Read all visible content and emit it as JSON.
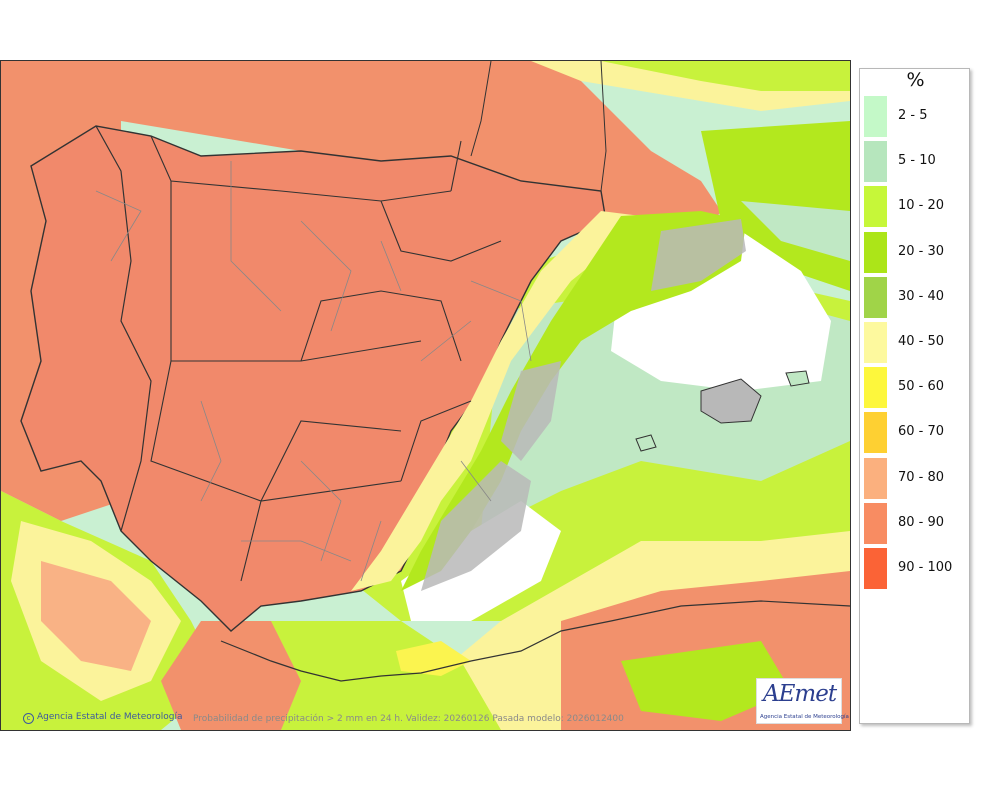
{
  "colors": {
    "sea": "#c9f0d2",
    "land_high": "#f1896b",
    "land_outline": "#333333",
    "province_border": "#888888",
    "band_80_90": "#f2916c",
    "band_70_80": "#f9b285",
    "band_60_70": "#fbd261",
    "band_50_60": "#fbf44f",
    "band_40_50": "#fbf39b",
    "band_20_30": "#b3e81e",
    "band_10_20": "#c8f23c",
    "band_5_10": "#c0e8c4",
    "band_2_5": "#d4f8d0",
    "band_low": "#ffffff",
    "relief_grey": "#b8b8b8"
  },
  "legend": {
    "title": "%",
    "items": [
      {
        "label": "2 - 5",
        "color": "#c4f9c8"
      },
      {
        "label": "5 - 10",
        "color": "#b6e6bd"
      },
      {
        "label": "10 - 20",
        "color": "#c6f739"
      },
      {
        "label": "20 - 30",
        "color": "#ace518"
      },
      {
        "label": "30 - 40",
        "color": "#a0d448"
      },
      {
        "label": "40 - 50",
        "color": "#fdf99e"
      },
      {
        "label": "50 - 60",
        "color": "#fdf73c"
      },
      {
        "label": "60 - 70",
        "color": "#fed032"
      },
      {
        "label": "70 - 80",
        "color": "#fbb07e"
      },
      {
        "label": "80 - 90",
        "color": "#f88c62"
      },
      {
        "label": "90 - 100",
        "color": "#fb6336"
      }
    ]
  },
  "footer": {
    "credit": "Agencia Estatal de Meteorología",
    "caption": "Probabilidad de precipitación > 2 mm en 24 h. Validez: 20260126 Pasada modelo: 2026012400"
  },
  "logo": {
    "mark": "AEmet",
    "subtitle": "Agencia Estatal de Meteorología"
  }
}
